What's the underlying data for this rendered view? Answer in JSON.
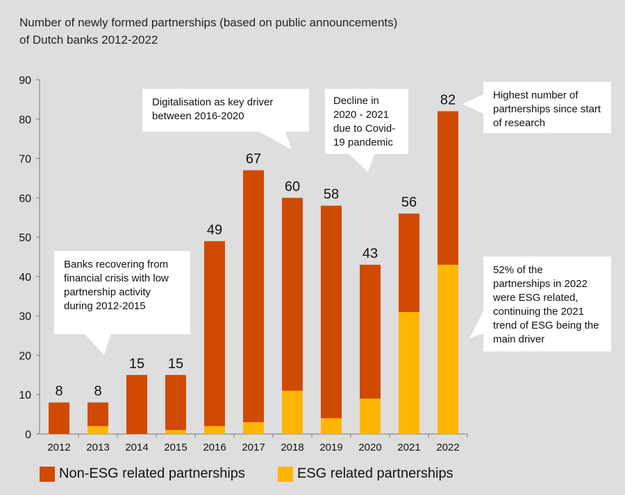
{
  "title_lines": [
    "Number of newly formed partnerships (based on public announcements)",
    "of Dutch banks 2012-2022"
  ],
  "chart_data": {
    "type": "bar",
    "stacked": true,
    "title": "Number of newly formed partnerships (based on public announcements) of Dutch banks 2012-2022",
    "categories": [
      "2012",
      "2013",
      "2014",
      "2015",
      "2016",
      "2017",
      "2018",
      "2019",
      "2020",
      "2021",
      "2022"
    ],
    "series": [
      {
        "name": "ESG related partnerships",
        "color": "#ffb600",
        "values": [
          0,
          2,
          0,
          1,
          2,
          3,
          11,
          4,
          9,
          31,
          43
        ]
      },
      {
        "name": "Non-ESG related partnerships",
        "color": "#d04a02",
        "values": [
          8,
          6,
          15,
          14,
          47,
          64,
          49,
          54,
          34,
          25,
          39
        ]
      }
    ],
    "totals": [
      8,
      8,
      15,
      15,
      49,
      67,
      60,
      58,
      43,
      56,
      82
    ],
    "ylim": [
      0,
      90
    ],
    "yticks": [
      0,
      10,
      20,
      30,
      40,
      50,
      60,
      70,
      80,
      90
    ],
    "grid": false,
    "legend": "bottom-left"
  },
  "annotations": [
    "Banks recovering from financial crisis with low partnership activity during 2012-2015",
    "Digitalisation as key driver between 2016-2020",
    "Decline in 2020 - 2021 due to Covid-19 pandemic",
    "Highest number of partnerships since start of research",
    "52% of the partnerships in 2022 were ESG related, continuing the 2021 trend of ESG being the main driver"
  ],
  "legend": {
    "non_esg": "Non-ESG related partnerships",
    "esg": "ESG related partnerships"
  }
}
